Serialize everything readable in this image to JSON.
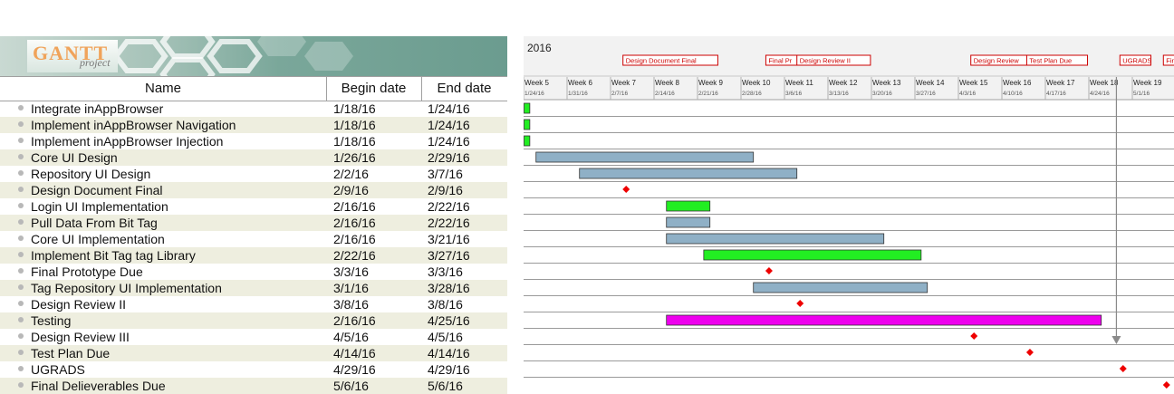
{
  "logo": {
    "gantt": "GANTT",
    "project": "project"
  },
  "table": {
    "headers": {
      "name": "Name",
      "begin": "Begin date",
      "end": "End date"
    },
    "rows": [
      {
        "name": "Integrate inAppBrowser",
        "begin": "1/18/16",
        "end": "1/24/16"
      },
      {
        "name": "Implement inAppBrowser Navigation",
        "begin": "1/18/16",
        "end": "1/24/16"
      },
      {
        "name": "Implement inAppBrowser Injection",
        "begin": "1/18/16",
        "end": "1/24/16"
      },
      {
        "name": "Core UI Design",
        "begin": "1/26/16",
        "end": "2/29/16"
      },
      {
        "name": "Repository UI Design",
        "begin": "2/2/16",
        "end": "3/7/16"
      },
      {
        "name": "Design Document Final",
        "begin": "2/9/16",
        "end": "2/9/16"
      },
      {
        "name": "Login UI Implementation",
        "begin": "2/16/16",
        "end": "2/22/16"
      },
      {
        "name": "Pull Data From Bit Tag",
        "begin": "2/16/16",
        "end": "2/22/16"
      },
      {
        "name": "Core UI Implementation",
        "begin": "2/16/16",
        "end": "3/21/16"
      },
      {
        "name": "Implement Bit Tag tag Library",
        "begin": "2/22/16",
        "end": "3/27/16"
      },
      {
        "name": "Final Prototype Due",
        "begin": "3/3/16",
        "end": "3/3/16"
      },
      {
        "name": "Tag Repository UI Implementation",
        "begin": "3/1/16",
        "end": "3/28/16"
      },
      {
        "name": "Design Review II",
        "begin": "3/8/16",
        "end": "3/8/16"
      },
      {
        "name": "Testing",
        "begin": "2/16/16",
        "end": "4/25/16"
      },
      {
        "name": "Design Review III",
        "begin": "4/5/16",
        "end": "4/5/16"
      },
      {
        "name": "Test Plan Due",
        "begin": "4/14/16",
        "end": "4/14/16"
      },
      {
        "name": "UGRADS",
        "begin": "4/29/16",
        "end": "4/29/16"
      },
      {
        "name": "Final Delieverables Due",
        "begin": "5/6/16",
        "end": "5/6/16"
      }
    ]
  },
  "timeline": {
    "year": "2016",
    "weeks": [
      {
        "label": "Week 5",
        "date": "1/24/16"
      },
      {
        "label": "Week 6",
        "date": "1/31/16"
      },
      {
        "label": "Week 7",
        "date": "2/7/16"
      },
      {
        "label": "Week 8",
        "date": "2/14/16"
      },
      {
        "label": "Week 9",
        "date": "2/21/16"
      },
      {
        "label": "Week 10",
        "date": "2/28/16"
      },
      {
        "label": "Week 11",
        "date": "3/6/16"
      },
      {
        "label": "Week 12",
        "date": "3/13/16"
      },
      {
        "label": "Week 13",
        "date": "3/20/16"
      },
      {
        "label": "Week 14",
        "date": "3/27/16"
      },
      {
        "label": "Week 15",
        "date": "4/3/16"
      },
      {
        "label": "Week 16",
        "date": "4/10/16"
      },
      {
        "label": "Week 17",
        "date": "4/17/16"
      },
      {
        "label": "Week 18",
        "date": "4/24/16"
      },
      {
        "label": "Week 19",
        "date": "5/1/16"
      }
    ],
    "milestone_flags": [
      "Design Document Final",
      "Final Pr",
      "Design Review II",
      "Design Review",
      "Test Plan Due",
      "UGRADS",
      "Fin"
    ]
  },
  "colors": {
    "bar_blue": "#8fb0c6",
    "bar_green": "#22ee22",
    "bar_magenta": "#ee00ee",
    "milestone_red": "#ee0000",
    "flag_red": "#cc0000",
    "today_line": "#8a8a8a",
    "header_bg": "#f2f2f2",
    "row_alt": "#eeeedf"
  },
  "chart_data": {
    "type": "gantt",
    "tasks": [
      {
        "name": "Integrate inAppBrowser",
        "start": "2016-01-18",
        "end": "2016-01-24",
        "kind": "bar",
        "color": "green"
      },
      {
        "name": "Implement inAppBrowser Navigation",
        "start": "2016-01-18",
        "end": "2016-01-24",
        "kind": "bar",
        "color": "green"
      },
      {
        "name": "Implement inAppBrowser Injection",
        "start": "2016-01-18",
        "end": "2016-01-24",
        "kind": "bar",
        "color": "green"
      },
      {
        "name": "Core UI Design",
        "start": "2016-01-26",
        "end": "2016-02-29",
        "kind": "bar",
        "color": "blue"
      },
      {
        "name": "Repository UI Design",
        "start": "2016-02-02",
        "end": "2016-03-07",
        "kind": "bar",
        "color": "blue"
      },
      {
        "name": "Design Document Final",
        "start": "2016-02-09",
        "end": "2016-02-09",
        "kind": "milestone",
        "color": "red"
      },
      {
        "name": "Login UI Implementation",
        "start": "2016-02-16",
        "end": "2016-02-22",
        "kind": "bar",
        "color": "green"
      },
      {
        "name": "Pull Data From Bit Tag",
        "start": "2016-02-16",
        "end": "2016-02-22",
        "kind": "bar",
        "color": "blue"
      },
      {
        "name": "Core UI Implementation",
        "start": "2016-02-16",
        "end": "2016-03-21",
        "kind": "bar",
        "color": "blue"
      },
      {
        "name": "Implement Bit Tag tag Library",
        "start": "2016-02-22",
        "end": "2016-03-27",
        "kind": "bar",
        "color": "green"
      },
      {
        "name": "Final Prototype Due",
        "start": "2016-03-03",
        "end": "2016-03-03",
        "kind": "milestone",
        "color": "red"
      },
      {
        "name": "Tag Repository UI Implementation",
        "start": "2016-03-01",
        "end": "2016-03-28",
        "kind": "bar",
        "color": "blue"
      },
      {
        "name": "Design Review II",
        "start": "2016-03-08",
        "end": "2016-03-08",
        "kind": "milestone",
        "color": "red"
      },
      {
        "name": "Testing",
        "start": "2016-02-16",
        "end": "2016-04-25",
        "kind": "bar",
        "color": "magenta"
      },
      {
        "name": "Design Review III",
        "start": "2016-04-05",
        "end": "2016-04-05",
        "kind": "milestone",
        "color": "red"
      },
      {
        "name": "Test Plan Due",
        "start": "2016-04-14",
        "end": "2016-04-14",
        "kind": "milestone",
        "color": "red"
      },
      {
        "name": "UGRADS",
        "start": "2016-04-29",
        "end": "2016-04-29",
        "kind": "milestone",
        "color": "red"
      },
      {
        "name": "Final Delieverables Due",
        "start": "2016-05-06",
        "end": "2016-05-06",
        "kind": "milestone",
        "color": "red"
      }
    ],
    "flags": [
      {
        "label": "Design Document Final",
        "date": "2016-02-09"
      },
      {
        "label": "Final Pr",
        "date": "2016-03-03"
      },
      {
        "label": "Design Review II",
        "date": "2016-03-08"
      },
      {
        "label": "Design Review",
        "date": "2016-04-05"
      },
      {
        "label": "Test Plan Due",
        "date": "2016-04-14"
      },
      {
        "label": "UGRADS",
        "date": "2016-04-29"
      },
      {
        "label": "Fin",
        "date": "2016-05-06"
      }
    ],
    "today": "2016-04-28"
  }
}
